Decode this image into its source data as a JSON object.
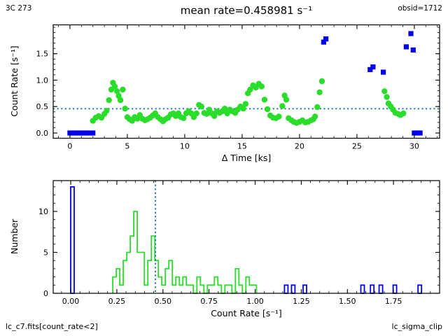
{
  "header": {
    "object_label": "3C 273",
    "title": "mean rate=0.458981 s⁻¹",
    "obsid_label": "obsid=1712"
  },
  "footer": {
    "filter_label": "lc_c7.fits[count_rate<2]",
    "method_label": "lc_sigma_clip"
  },
  "mean_rate": 0.458981,
  "colors": {
    "accepted_green": "#2bdd2b",
    "clipped_blue": "#0000ee",
    "mean_line_blue": "#2077b4",
    "axis_black": "#000000"
  },
  "chart_data": [
    {
      "id": "lightcurve",
      "type": "scatter",
      "title": "mean rate=0.458981 s⁻¹",
      "xlabel": "Δ Time [ks]",
      "ylabel": "Count Rate [s⁻¹]",
      "xlim": [
        -1.46,
        32.2
      ],
      "ylim": [
        -0.1,
        2.046
      ],
      "grid": false,
      "xticks": {
        "values": [
          0,
          5,
          10,
          15,
          20,
          25,
          30
        ],
        "labels": [
          "0",
          "5",
          "10",
          "15",
          "20",
          "25",
          "30"
        ],
        "minor_step": 1
      },
      "yticks": {
        "values": [
          0,
          0.5,
          1,
          1.5
        ],
        "labels": [
          "0.0",
          "0.5",
          "1.0",
          "1.5"
        ],
        "minor_step": 0.1
      },
      "mean_line": {
        "orientation": "horizontal",
        "value": 0.458981,
        "style": "dotted"
      },
      "series": [
        {
          "name": "count-rate-accepted",
          "marker": "circle",
          "color_key": "accepted_green",
          "points": [
            [
              2.0,
              0.23
            ],
            [
              2.25,
              0.29
            ],
            [
              2.5,
              0.32
            ],
            [
              2.75,
              0.29
            ],
            [
              3.0,
              0.36
            ],
            [
              3.2,
              0.42
            ],
            [
              3.4,
              0.62
            ],
            [
              3.6,
              0.82
            ],
            [
              3.75,
              0.95
            ],
            [
              3.9,
              0.88
            ],
            [
              4.1,
              0.79
            ],
            [
              4.25,
              0.7
            ],
            [
              4.4,
              0.62
            ],
            [
              4.6,
              0.82
            ],
            [
              4.8,
              0.46
            ],
            [
              5.0,
              0.3
            ],
            [
              5.2,
              0.26
            ],
            [
              5.42,
              0.23
            ],
            [
              5.64,
              0.3
            ],
            [
              5.87,
              0.27
            ],
            [
              6.09,
              0.34
            ],
            [
              6.31,
              0.27
            ],
            [
              6.54,
              0.24
            ],
            [
              6.76,
              0.26
            ],
            [
              6.99,
              0.29
            ],
            [
              7.21,
              0.33
            ],
            [
              7.43,
              0.37
            ],
            [
              7.66,
              0.3
            ],
            [
              7.88,
              0.26
            ],
            [
              8.11,
              0.22
            ],
            [
              8.33,
              0.26
            ],
            [
              8.55,
              0.29
            ],
            [
              8.78,
              0.35
            ],
            [
              9.0,
              0.37
            ],
            [
              9.22,
              0.32
            ],
            [
              9.45,
              0.37
            ],
            [
              9.67,
              0.3
            ],
            [
              9.9,
              0.28
            ],
            [
              10.12,
              0.37
            ],
            [
              10.34,
              0.41
            ],
            [
              10.57,
              0.37
            ],
            [
              10.79,
              0.3
            ],
            [
              11.02,
              0.37
            ],
            [
              11.24,
              0.53
            ],
            [
              11.46,
              0.5
            ],
            [
              11.69,
              0.38
            ],
            [
              11.91,
              0.36
            ],
            [
              12.14,
              0.44
            ],
            [
              12.36,
              0.37
            ],
            [
              12.58,
              0.32
            ],
            [
              12.81,
              0.41
            ],
            [
              13.03,
              0.38
            ],
            [
              13.26,
              0.41
            ],
            [
              13.48,
              0.46
            ],
            [
              13.7,
              0.37
            ],
            [
              13.93,
              0.44
            ],
            [
              14.15,
              0.41
            ],
            [
              14.4,
              0.38
            ],
            [
              14.6,
              0.44
            ],
            [
              14.85,
              0.5
            ],
            [
              15.1,
              0.46
            ],
            [
              15.3,
              0.55
            ],
            [
              15.5,
              0.75
            ],
            [
              15.7,
              0.82
            ],
            [
              15.95,
              0.9
            ],
            [
              16.2,
              0.86
            ],
            [
              16.45,
              0.93
            ],
            [
              16.7,
              0.88
            ],
            [
              16.95,
              0.63
            ],
            [
              17.2,
              0.45
            ],
            [
              17.45,
              0.33
            ],
            [
              17.7,
              0.29
            ],
            [
              17.95,
              0.28
            ],
            [
              18.2,
              0.31
            ],
            [
              18.5,
              0.51
            ],
            [
              18.7,
              0.71
            ],
            [
              18.85,
              0.63
            ],
            [
              19.05,
              0.28
            ],
            [
              19.3,
              0.24
            ],
            [
              19.5,
              0.21
            ],
            [
              19.75,
              0.19
            ],
            [
              20.0,
              0.21
            ],
            [
              20.25,
              0.24
            ],
            [
              20.5,
              0.2
            ],
            [
              20.75,
              0.21
            ],
            [
              21.0,
              0.24
            ],
            [
              21.2,
              0.26
            ],
            [
              21.35,
              0.31
            ],
            [
              21.55,
              0.49
            ],
            [
              21.75,
              0.77
            ],
            [
              21.95,
              0.98
            ],
            [
              27.4,
              0.79
            ],
            [
              27.6,
              0.68
            ],
            [
              27.75,
              0.56
            ],
            [
              27.95,
              0.5
            ],
            [
              28.15,
              0.44
            ],
            [
              28.35,
              0.38
            ],
            [
              28.6,
              0.36
            ],
            [
              28.8,
              0.34
            ],
            [
              29.05,
              0.37
            ]
          ]
        },
        {
          "name": "count-rate-clipped",
          "marker": "square",
          "color_key": "clipped_blue",
          "points": [
            [
              0,
              0
            ],
            [
              0.25,
              0
            ],
            [
              0.5,
              0
            ],
            [
              0.75,
              0
            ],
            [
              1.0,
              0
            ],
            [
              1.25,
              0
            ],
            [
              1.5,
              0
            ],
            [
              1.75,
              0
            ],
            [
              2.0,
              0
            ],
            [
              22.1,
              1.72
            ],
            [
              22.3,
              1.78
            ],
            [
              26.15,
              1.2
            ],
            [
              26.4,
              1.25
            ],
            [
              27.3,
              1.15
            ],
            [
              29.3,
              1.63
            ],
            [
              29.7,
              1.88
            ],
            [
              29.9,
              1.57
            ],
            [
              30.0,
              0
            ],
            [
              30.25,
              0
            ],
            [
              30.5,
              0
            ]
          ]
        }
      ]
    },
    {
      "id": "histogram",
      "type": "histogram",
      "xlabel": "Count Rate [s⁻¹]",
      "ylabel": "Number",
      "xlim": [
        -0.095,
        2.0
      ],
      "ylim": [
        0,
        13.76
      ],
      "grid": false,
      "xticks": {
        "values": [
          0,
          0.25,
          0.5,
          0.75,
          1.0,
          1.25,
          1.5,
          1.75
        ],
        "labels": [
          "0.00",
          "0.25",
          "0.50",
          "0.75",
          "1.00",
          "1.25",
          "1.50",
          "1.75"
        ],
        "minor_step": 0.05
      },
      "yticks": {
        "values": [
          0,
          5,
          10
        ],
        "labels": [
          "0",
          "5",
          "10"
        ],
        "minor_step": 1
      },
      "mean_line": {
        "orientation": "vertical",
        "value": 0.458981,
        "style": "dotted"
      },
      "bin_width": 0.019,
      "series": [
        {
          "name": "rate-hist-accepted",
          "color_key": "accepted_green",
          "bin_start": 0.228,
          "heights": [
            2,
            3,
            1,
            4,
            5,
            7,
            10,
            5,
            5,
            1,
            4,
            7,
            4,
            2,
            1,
            3,
            4,
            1,
            2,
            1,
            2,
            1,
            1,
            0,
            2,
            1,
            0,
            1,
            1,
            2,
            1,
            0,
            1,
            1,
            0,
            3,
            1,
            0,
            2,
            1,
            1
          ]
        },
        {
          "name": "rate-hist-clipped",
          "color_key": "clipped_blue",
          "bars": [
            [
              0.0,
              13
            ],
            [
              1.159,
              1
            ],
            [
              1.197,
              1
            ],
            [
              1.26,
              1
            ],
            [
              1.573,
              1
            ],
            [
              1.625,
              1
            ],
            [
              1.672,
              1
            ],
            [
              1.748,
              1
            ],
            [
              1.883,
              1
            ]
          ]
        }
      ]
    }
  ]
}
